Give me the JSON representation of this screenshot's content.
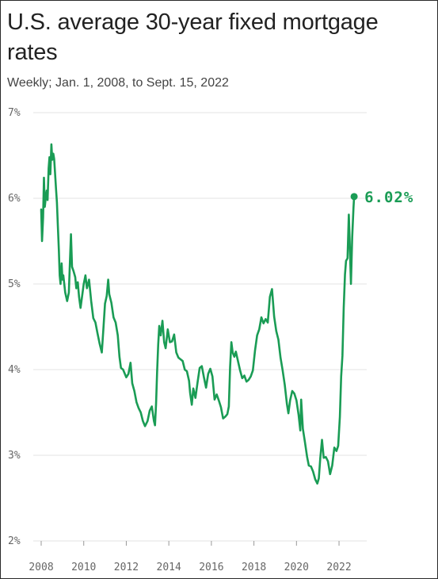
{
  "chart_data": {
    "type": "line",
    "title": "U.S. average 30-year fixed mortgage rates",
    "subtitle": "Weekly; Jan. 1, 2008, to Sept. 15, 2022",
    "y_ticks": [
      "7%",
      "6%",
      "5%",
      "4%",
      "3%",
      "2%"
    ],
    "x_ticks": [
      "2008",
      "2010",
      "2012",
      "2014",
      "2016",
      "2018",
      "2020",
      "2022"
    ],
    "ylim": [
      2,
      7
    ],
    "xlim": [
      2008,
      2022.71
    ],
    "grid": true,
    "line_color": "#1a9c55",
    "end_label": "6.02%",
    "series": [
      {
        "values": [
          [
            2008.0,
            5.87
          ],
          [
            2008.04,
            5.5
          ],
          [
            2008.09,
            5.78
          ],
          [
            2008.13,
            6.24
          ],
          [
            2008.17,
            5.9
          ],
          [
            2008.22,
            6.02
          ],
          [
            2008.26,
            6.09
          ],
          [
            2008.3,
            5.98
          ],
          [
            2008.35,
            6.35
          ],
          [
            2008.39,
            6.48
          ],
          [
            2008.43,
            6.28
          ],
          [
            2008.48,
            6.63
          ],
          [
            2008.52,
            6.45
          ],
          [
            2008.57,
            6.52
          ],
          [
            2008.61,
            6.46
          ],
          [
            2008.65,
            6.3
          ],
          [
            2008.7,
            6.1
          ],
          [
            2008.74,
            5.95
          ],
          [
            2008.78,
            5.7
          ],
          [
            2008.83,
            5.4
          ],
          [
            2008.87,
            5.1
          ],
          [
            2008.91,
            5.0
          ],
          [
            2008.96,
            5.24
          ],
          [
            2009.0,
            5.05
          ],
          [
            2009.04,
            5.1
          ],
          [
            2009.13,
            4.9
          ],
          [
            2009.22,
            4.8
          ],
          [
            2009.3,
            4.9
          ],
          [
            2009.35,
            5.25
          ],
          [
            2009.4,
            5.58
          ],
          [
            2009.45,
            5.2
          ],
          [
            2009.52,
            5.15
          ],
          [
            2009.6,
            5.08
          ],
          [
            2009.65,
            4.95
          ],
          [
            2009.72,
            5.02
          ],
          [
            2009.78,
            4.85
          ],
          [
            2009.85,
            4.72
          ],
          [
            2009.92,
            4.85
          ],
          [
            2010.0,
            5.0
          ],
          [
            2010.08,
            5.1
          ],
          [
            2010.15,
            4.95
          ],
          [
            2010.25,
            5.05
          ],
          [
            2010.35,
            4.8
          ],
          [
            2010.45,
            4.6
          ],
          [
            2010.55,
            4.55
          ],
          [
            2010.65,
            4.42
          ],
          [
            2010.75,
            4.3
          ],
          [
            2010.85,
            4.2
          ],
          [
            2010.92,
            4.46
          ],
          [
            2011.0,
            4.77
          ],
          [
            2011.08,
            4.86
          ],
          [
            2011.15,
            5.05
          ],
          [
            2011.2,
            4.88
          ],
          [
            2011.3,
            4.78
          ],
          [
            2011.4,
            4.61
          ],
          [
            2011.5,
            4.55
          ],
          [
            2011.6,
            4.4
          ],
          [
            2011.68,
            4.15
          ],
          [
            2011.75,
            4.02
          ],
          [
            2011.85,
            4.0
          ],
          [
            2012.0,
            3.91
          ],
          [
            2012.1,
            3.95
          ],
          [
            2012.2,
            4.08
          ],
          [
            2012.28,
            3.84
          ],
          [
            2012.38,
            3.75
          ],
          [
            2012.48,
            3.62
          ],
          [
            2012.58,
            3.55
          ],
          [
            2012.68,
            3.5
          ],
          [
            2012.78,
            3.4
          ],
          [
            2012.88,
            3.34
          ],
          [
            2013.0,
            3.4
          ],
          [
            2013.1,
            3.52
          ],
          [
            2013.2,
            3.57
          ],
          [
            2013.3,
            3.4
          ],
          [
            2013.35,
            3.35
          ],
          [
            2013.4,
            3.6
          ],
          [
            2013.45,
            3.98
          ],
          [
            2013.5,
            4.29
          ],
          [
            2013.55,
            4.51
          ],
          [
            2013.62,
            4.4
          ],
          [
            2013.7,
            4.57
          ],
          [
            2013.78,
            4.32
          ],
          [
            2013.85,
            4.25
          ],
          [
            2013.95,
            4.47
          ],
          [
            2014.05,
            4.32
          ],
          [
            2014.15,
            4.33
          ],
          [
            2014.25,
            4.41
          ],
          [
            2014.35,
            4.2
          ],
          [
            2014.45,
            4.14
          ],
          [
            2014.55,
            4.12
          ],
          [
            2014.65,
            4.1
          ],
          [
            2014.75,
            4.0
          ],
          [
            2014.85,
            3.98
          ],
          [
            2014.95,
            3.87
          ],
          [
            2015.0,
            3.73
          ],
          [
            2015.08,
            3.59
          ],
          [
            2015.15,
            3.78
          ],
          [
            2015.25,
            3.67
          ],
          [
            2015.35,
            3.85
          ],
          [
            2015.45,
            4.02
          ],
          [
            2015.55,
            4.04
          ],
          [
            2015.65,
            3.91
          ],
          [
            2015.75,
            3.79
          ],
          [
            2015.85,
            3.95
          ],
          [
            2015.95,
            4.01
          ],
          [
            2016.05,
            3.92
          ],
          [
            2016.15,
            3.65
          ],
          [
            2016.25,
            3.71
          ],
          [
            2016.35,
            3.64
          ],
          [
            2016.45,
            3.56
          ],
          [
            2016.55,
            3.43
          ],
          [
            2016.65,
            3.45
          ],
          [
            2016.75,
            3.48
          ],
          [
            2016.82,
            3.57
          ],
          [
            2016.88,
            4.03
          ],
          [
            2016.94,
            4.32
          ],
          [
            2017.0,
            4.2
          ],
          [
            2017.08,
            4.15
          ],
          [
            2017.15,
            4.21
          ],
          [
            2017.25,
            4.1
          ],
          [
            2017.35,
            3.99
          ],
          [
            2017.45,
            3.9
          ],
          [
            2017.55,
            3.93
          ],
          [
            2017.65,
            3.86
          ],
          [
            2017.75,
            3.88
          ],
          [
            2017.85,
            3.92
          ],
          [
            2017.95,
            3.99
          ],
          [
            2018.05,
            4.22
          ],
          [
            2018.15,
            4.4
          ],
          [
            2018.25,
            4.47
          ],
          [
            2018.35,
            4.61
          ],
          [
            2018.45,
            4.54
          ],
          [
            2018.55,
            4.59
          ],
          [
            2018.65,
            4.55
          ],
          [
            2018.75,
            4.85
          ],
          [
            2018.85,
            4.94
          ],
          [
            2018.95,
            4.62
          ],
          [
            2019.05,
            4.45
          ],
          [
            2019.15,
            4.35
          ],
          [
            2019.25,
            4.14
          ],
          [
            2019.35,
            3.99
          ],
          [
            2019.45,
            3.82
          ],
          [
            2019.55,
            3.6
          ],
          [
            2019.62,
            3.49
          ],
          [
            2019.7,
            3.64
          ],
          [
            2019.8,
            3.75
          ],
          [
            2019.9,
            3.72
          ],
          [
            2020.0,
            3.64
          ],
          [
            2020.1,
            3.47
          ],
          [
            2020.18,
            3.29
          ],
          [
            2020.22,
            3.65
          ],
          [
            2020.3,
            3.31
          ],
          [
            2020.4,
            3.15
          ],
          [
            2020.5,
            2.98
          ],
          [
            2020.58,
            2.88
          ],
          [
            2020.68,
            2.87
          ],
          [
            2020.78,
            2.81
          ],
          [
            2020.88,
            2.72
          ],
          [
            2020.98,
            2.67
          ],
          [
            2021.05,
            2.73
          ],
          [
            2021.12,
            2.97
          ],
          [
            2021.2,
            3.18
          ],
          [
            2021.28,
            2.97
          ],
          [
            2021.38,
            2.98
          ],
          [
            2021.48,
            2.93
          ],
          [
            2021.58,
            2.78
          ],
          [
            2021.68,
            2.88
          ],
          [
            2021.78,
            3.09
          ],
          [
            2021.88,
            3.05
          ],
          [
            2021.96,
            3.11
          ],
          [
            2022.04,
            3.45
          ],
          [
            2022.1,
            3.92
          ],
          [
            2022.16,
            4.16
          ],
          [
            2022.22,
            4.72
          ],
          [
            2022.28,
            5.11
          ],
          [
            2022.33,
            5.27
          ],
          [
            2022.4,
            5.3
          ],
          [
            2022.46,
            5.81
          ],
          [
            2022.5,
            5.51
          ],
          [
            2022.56,
            5.0
          ],
          [
            2022.62,
            5.55
          ],
          [
            2022.68,
            5.89
          ],
          [
            2022.71,
            6.02
          ]
        ]
      }
    ]
  }
}
